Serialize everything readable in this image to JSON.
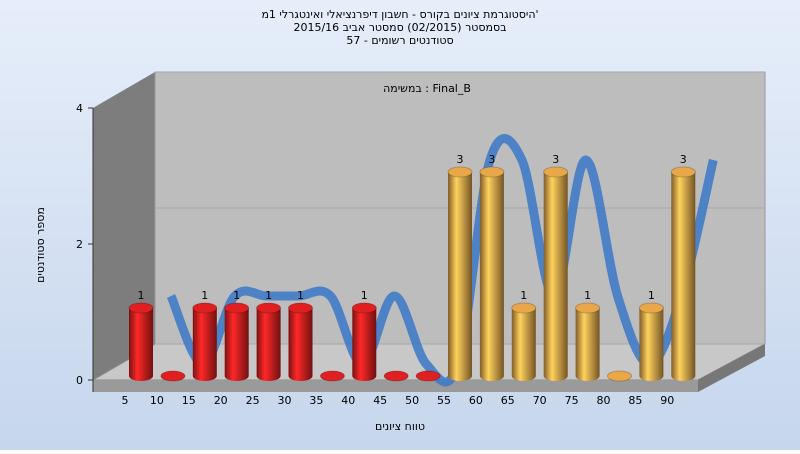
{
  "chart_data": {
    "type": "bar3d",
    "title": "היסטוגרמת ציונים בקורס - חשבון דיפרנציאלי ואינטגרלי 1מ'",
    "subtitle": "בסמסטר (02/2015) סמסטר אביב 2015/16",
    "subtitle2": "סטודנטים רשומים - 57",
    "annotation": "במשימה : Final_B",
    "y_label": "מספר סטודנטים",
    "x_label": "טווח ציונים",
    "categories": [
      "5",
      "10",
      "15",
      "20",
      "25",
      "30",
      "35",
      "40",
      "45",
      "50",
      "55",
      "60",
      "65",
      "70",
      "75",
      "80",
      "85",
      "90"
    ],
    "values": [
      1,
      0,
      1,
      1,
      1,
      1,
      0,
      1,
      0,
      0,
      3,
      3,
      1,
      3,
      1,
      0,
      1,
      3
    ],
    "bar_colors": [
      "#e02020",
      "#e02020",
      "#e02020",
      "#e02020",
      "#e02020",
      "#e02020",
      "#e02020",
      "#e02020",
      "#e02020",
      "#e02020",
      "#e8a84a",
      "#e8a84a",
      "#e8a84a",
      "#e8a84a",
      "#e8a84a",
      "#e8a84a",
      "#e8a84a",
      "#e8a84a"
    ],
    "trend_color": "#3a78c8",
    "ylim": [
      0,
      4
    ],
    "yticks": [
      0,
      2,
      4
    ],
    "grid": true
  }
}
